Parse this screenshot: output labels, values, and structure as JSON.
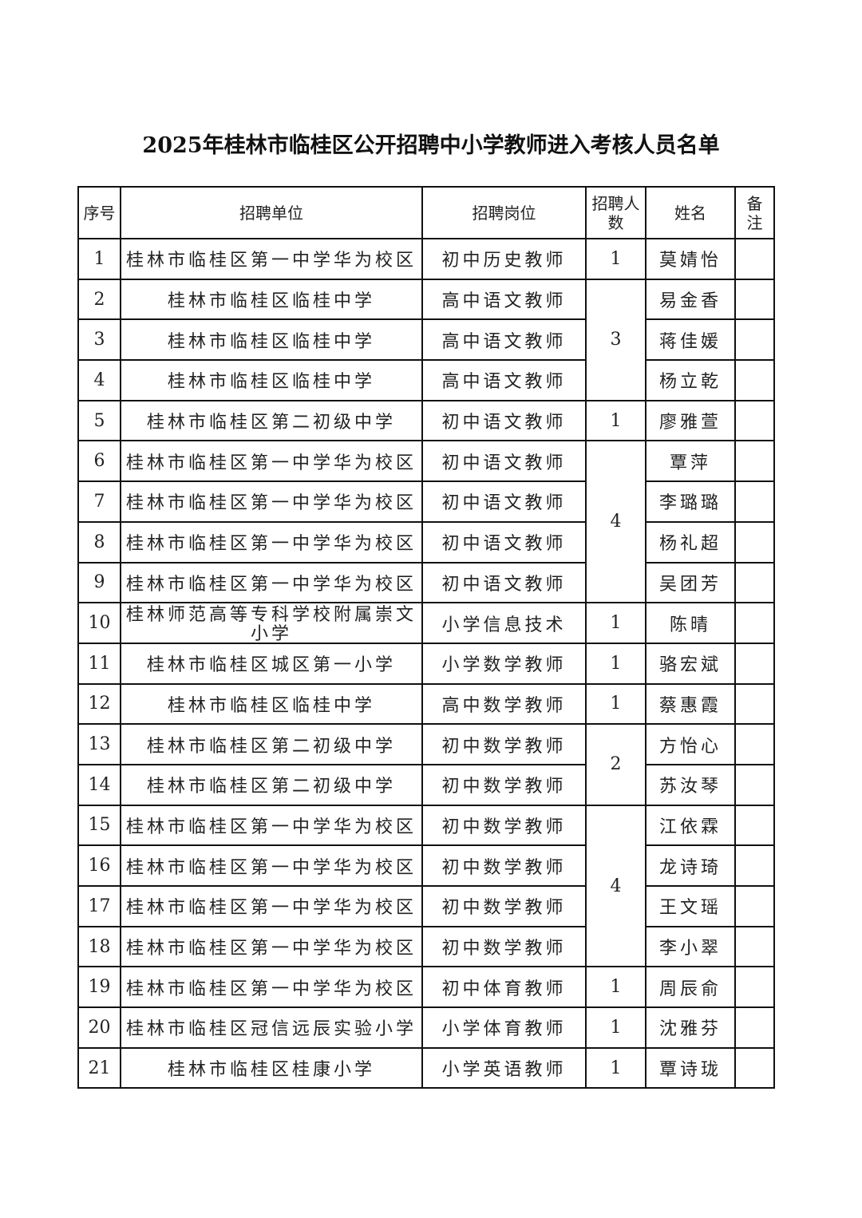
{
  "title": "2025年桂林市临桂区公开招聘中小学教师进入考核人员名单",
  "headers": [
    "序号",
    "招聘单位",
    "招聘岗位",
    "招聘人数",
    "姓名",
    "备注"
  ],
  "rows": [
    {
      "no": "1",
      "unit": "桂林市临桂区第一中学华为校区",
      "post": "初中历史教师",
      "count": "1",
      "count_rows": 1,
      "name": "莫婧怡",
      "note": ""
    },
    {
      "no": "2",
      "unit": "桂林市临桂区临桂中学",
      "post": "高中语文教师",
      "count": "3",
      "count_rows": 3,
      "name": "易金香",
      "note": ""
    },
    {
      "no": "3",
      "unit": "桂林市临桂区临桂中学",
      "post": "高中语文教师",
      "name": "蒋佳媛",
      "note": ""
    },
    {
      "no": "4",
      "unit": "桂林市临桂区临桂中学",
      "post": "高中语文教师",
      "name": "杨立乾",
      "note": ""
    },
    {
      "no": "5",
      "unit": "桂林市临桂区第二初级中学",
      "post": "初中语文教师",
      "count": "1",
      "count_rows": 1,
      "name": "廖雅萱",
      "note": ""
    },
    {
      "no": "6",
      "unit": "桂林市临桂区第一中学华为校区",
      "post": "初中语文教师",
      "count": "4",
      "count_rows": 4,
      "name": "覃萍",
      "note": ""
    },
    {
      "no": "7",
      "unit": "桂林市临桂区第一中学华为校区",
      "post": "初中语文教师",
      "name": "李璐璐",
      "note": ""
    },
    {
      "no": "8",
      "unit": "桂林市临桂区第一中学华为校区",
      "post": "初中语文教师",
      "name": "杨礼超",
      "note": ""
    },
    {
      "no": "9",
      "unit": "桂林市临桂区第一中学华为校区",
      "post": "初中语文教师",
      "name": "吴团芳",
      "note": ""
    },
    {
      "no": "10",
      "unit": "桂林师范高等专科学校附属崇文小学",
      "post": "小学信息技术",
      "count": "1",
      "count_rows": 1,
      "name": "陈晴",
      "note": ""
    },
    {
      "no": "11",
      "unit": "桂林市临桂区城区第一小学",
      "post": "小学数学教师",
      "count": "1",
      "count_rows": 1,
      "name": "骆宏斌",
      "note": ""
    },
    {
      "no": "12",
      "unit": "桂林市临桂区临桂中学",
      "post": "高中数学教师",
      "count": "1",
      "count_rows": 1,
      "name": "蔡惠霞",
      "note": ""
    },
    {
      "no": "13",
      "unit": "桂林市临桂区第二初级中学",
      "post": "初中数学教师",
      "count": "2",
      "count_rows": 2,
      "name": "方怡心",
      "note": ""
    },
    {
      "no": "14",
      "unit": "桂林市临桂区第二初级中学",
      "post": "初中数学教师",
      "name": "苏汝琴",
      "note": ""
    },
    {
      "no": "15",
      "unit": "桂林市临桂区第一中学华为校区",
      "post": "初中数学教师",
      "count": "4",
      "count_rows": 4,
      "name": "江依霖",
      "note": ""
    },
    {
      "no": "16",
      "unit": "桂林市临桂区第一中学华为校区",
      "post": "初中数学教师",
      "name": "龙诗琦",
      "note": ""
    },
    {
      "no": "17",
      "unit": "桂林市临桂区第一中学华为校区",
      "post": "初中数学教师",
      "name": "王文瑶",
      "note": ""
    },
    {
      "no": "18",
      "unit": "桂林市临桂区第一中学华为校区",
      "post": "初中数学教师",
      "name": "李小翠",
      "note": ""
    },
    {
      "no": "19",
      "unit": "桂林市临桂区第一中学华为校区",
      "post": "初中体育教师",
      "count": "1",
      "count_rows": 1,
      "name": "周辰俞",
      "note": ""
    },
    {
      "no": "20",
      "unit": "桂林市临桂区冠信远辰实验小学",
      "post": "小学体育教师",
      "count": "1",
      "count_rows": 1,
      "name": "沈雅芬",
      "note": ""
    },
    {
      "no": "21",
      "unit": "桂林市临桂区桂康小学",
      "post": "小学英语教师",
      "count": "1",
      "count_rows": 1,
      "name": "覃诗珑",
      "note": ""
    }
  ]
}
